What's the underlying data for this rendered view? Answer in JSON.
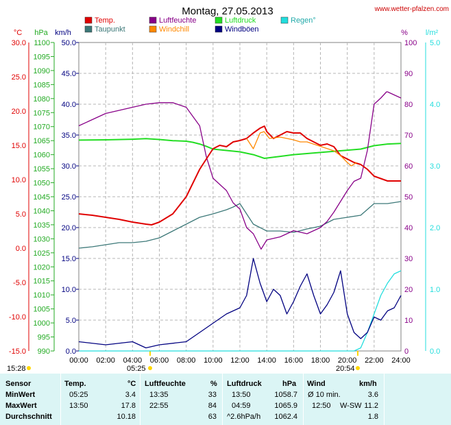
{
  "page": {
    "title": "Montag, 27.05.2013",
    "site": "www.wetter-pfalzen.com"
  },
  "colors": {
    "temp": "#e00000",
    "taupunkt": "#3c7878",
    "luftfeuchte": "#880088",
    "windchill": "#ff8800",
    "luftdruck": "#22dd22",
    "windboeen": "#000080",
    "regen": "#22dddd",
    "grid": "#b4b4b4",
    "frame": "#808080",
    "stats_bg": "#dbf5f5"
  },
  "chart_data": {
    "type": "line",
    "title": "Montag, 27.05.2013",
    "x_range_hours": [
      0,
      24
    ],
    "x_ticks": [
      "00:00",
      "02:00",
      "04:00",
      "06:00",
      "08:00",
      "10:00",
      "12:00",
      "14:00",
      "16:00",
      "18:00",
      "20:00",
      "22:00",
      "24:00"
    ],
    "grid": true,
    "legend_placement": "top",
    "legend": [
      {
        "label": "Temp.",
        "color": "#e00000"
      },
      {
        "label": "Taupunkt",
        "color": "#3c7878"
      },
      {
        "label": "Luftfeuchte",
        "color": "#880088"
      },
      {
        "label": "Windchill",
        "color": "#ff8800"
      },
      {
        "label": "Luftdruck",
        "color": "#22dd22"
      },
      {
        "label": "Windböen",
        "color": "#000080"
      },
      {
        "label": "Regen°",
        "color": "#22dddd"
      }
    ],
    "axes": {
      "temp_c": {
        "label": "°C",
        "range": [
          -15,
          30
        ],
        "ticks": [
          "30.0",
          "25.0",
          "20.0",
          "15.0",
          "10.0",
          "5.0",
          "0.0",
          "-5.0",
          "-10.0",
          "-15.0"
        ],
        "color": "#e00000"
      },
      "hpa": {
        "label": "hPa",
        "range": [
          990,
          1100
        ],
        "ticks": [
          "1100",
          "1095",
          "1090",
          "1085",
          "1080",
          "1075",
          "1070",
          "1065",
          "1060",
          "1055",
          "1050",
          "1045",
          "1040",
          "1035",
          "1030",
          "1025",
          "1020",
          "1015",
          "1010",
          "1005",
          "1000",
          "995",
          "990"
        ],
        "color": "#22aa22"
      },
      "kmh": {
        "label": "km/h",
        "range": [
          0,
          50
        ],
        "ticks": [
          "50.0",
          "45.0",
          "40.0",
          "35.0",
          "30.0",
          "25.0",
          "20.0",
          "15.0",
          "10.0",
          "5.0",
          "0.0"
        ],
        "color": "#000080"
      },
      "percent": {
        "label": "%",
        "range": [
          0,
          100
        ],
        "ticks": [
          "100",
          "90",
          "80",
          "70",
          "60",
          "50",
          "40",
          "30",
          "20",
          "10",
          "0"
        ],
        "color": "#880088"
      },
      "rain": {
        "label": "l/m²",
        "range": [
          0,
          5
        ],
        "ticks": [
          "5.0",
          "4.0",
          "3.0",
          "2.0",
          "1.0",
          "0.0"
        ],
        "color": "#22dddd"
      }
    },
    "sun_times": {
      "sunrise_marker": "05:25",
      "sunset_marker": "20:54",
      "left_marker": "15:28"
    },
    "series": [
      {
        "name": "Temp.",
        "axis": "temp_c",
        "x": [
          0,
          1,
          2,
          3,
          4,
          5,
          5.42,
          6,
          7,
          8,
          9,
          9.5,
          10,
          10.5,
          11,
          11.5,
          12,
          12.5,
          13,
          13.5,
          13.83,
          14,
          14.5,
          15,
          15.5,
          16,
          16.5,
          17,
          17.5,
          18,
          18.5,
          19,
          19.5,
          20,
          20.5,
          21,
          21.5,
          22,
          23,
          24
        ],
        "values": [
          5.0,
          4.8,
          4.5,
          4.2,
          3.8,
          3.5,
          3.4,
          3.8,
          5.0,
          7.5,
          11.5,
          13.0,
          14.5,
          15.0,
          14.8,
          15.5,
          15.7,
          16.0,
          16.8,
          17.5,
          17.8,
          17.0,
          16.0,
          16.5,
          17.0,
          16.8,
          16.8,
          16.0,
          15.5,
          15.0,
          15.2,
          14.8,
          13.5,
          13.0,
          12.5,
          12.2,
          11.5,
          10.5,
          9.8,
          9.8
        ]
      },
      {
        "name": "Taupunkt",
        "axis": "temp_c",
        "x": [
          0,
          1,
          2,
          3,
          4,
          5,
          6,
          7,
          8,
          9,
          10,
          10.5,
          11,
          11.5,
          12,
          12.5,
          13,
          13.5,
          14,
          15,
          16,
          17,
          18,
          18.5,
          19,
          20,
          21,
          22,
          23,
          24
        ],
        "values": [
          0.0,
          0.2,
          0.5,
          0.8,
          0.8,
          1.0,
          1.5,
          2.5,
          3.5,
          4.5,
          5.0,
          5.3,
          5.6,
          6.0,
          6.5,
          5.0,
          3.5,
          3.0,
          2.5,
          2.5,
          2.3,
          2.8,
          3.2,
          3.7,
          4.2,
          4.5,
          4.8,
          6.5,
          6.5,
          6.8
        ]
      },
      {
        "name": "Luftfeuchte",
        "axis": "percent",
        "x": [
          0,
          1,
          2,
          3,
          4,
          5,
          6,
          7,
          8,
          9,
          9.5,
          10,
          10.5,
          11,
          11.5,
          12,
          12.5,
          13,
          13.58,
          14,
          15,
          16,
          17,
          18,
          18.5,
          19,
          20,
          20.5,
          21,
          21.5,
          22,
          22.5,
          22.92,
          23,
          24
        ],
        "values": [
          73,
          75,
          77,
          78,
          79,
          80,
          80.5,
          80.5,
          79,
          73,
          63,
          56,
          54,
          52,
          48,
          46,
          40,
          38,
          33,
          36,
          37,
          39,
          38,
          40,
          42,
          45,
          52,
          55,
          56,
          65,
          80,
          82,
          84,
          84,
          82
        ]
      },
      {
        "name": "Windchill",
        "axis": "temp_c",
        "x": [
          12.5,
          13,
          13.5,
          13.8,
          14.2,
          15,
          16,
          16.5,
          17,
          19,
          19.5,
          20,
          20.3,
          20.7
        ],
        "values": [
          16.0,
          14.5,
          16.8,
          17.0,
          16.0,
          16.2,
          15.8,
          15.5,
          15.5,
          14.2,
          13.5,
          12.5,
          12.0,
          12.5
        ]
      },
      {
        "name": "Luftdruck",
        "axis": "hpa",
        "x": [
          0,
          2,
          4,
          5,
          6,
          7,
          8,
          8.5,
          9,
          9.5,
          10,
          11,
          12,
          13,
          13.83,
          15,
          16,
          17,
          18,
          19,
          20,
          21,
          22,
          23,
          24
        ],
        "values": [
          1065.2,
          1065.3,
          1065.5,
          1065.7,
          1065.4,
          1065.0,
          1064.8,
          1064.4,
          1063.8,
          1063.0,
          1062.0,
          1061.5,
          1061.0,
          1060.0,
          1058.7,
          1059.4,
          1060.0,
          1060.4,
          1060.8,
          1061.2,
          1061.6,
          1062.0,
          1063.2,
          1063.8,
          1064.0
        ]
      },
      {
        "name": "Windböen",
        "axis": "kmh",
        "x": [
          0,
          2,
          4,
          5,
          6,
          8,
          9,
          10,
          11,
          12,
          12.5,
          13,
          13.5,
          14,
          14.5,
          15,
          15.5,
          16,
          16.5,
          17,
          17.5,
          18,
          18.5,
          19,
          19.5,
          20,
          20.5,
          21,
          21.5,
          22,
          22.5,
          23,
          23.5,
          24
        ],
        "values": [
          1.5,
          1.0,
          1.5,
          0.5,
          1.0,
          1.5,
          3.0,
          4.5,
          6.0,
          7.0,
          9.0,
          15.0,
          11.0,
          8.0,
          10.0,
          9.0,
          6.0,
          8.0,
          10.5,
          12.5,
          9.0,
          6.0,
          7.5,
          9.5,
          13.0,
          6.0,
          3.0,
          2.0,
          3.0,
          5.5,
          5.0,
          6.5,
          7.0,
          9.0
        ]
      },
      {
        "name": "Regen°",
        "axis": "rain",
        "x": [
          0,
          20.5,
          21,
          21.5,
          22,
          22.5,
          23,
          23.5,
          24
        ],
        "values": [
          0,
          0,
          0.05,
          0.3,
          0.6,
          0.9,
          1.1,
          1.25,
          1.3
        ]
      }
    ]
  },
  "stats": {
    "headers": {
      "sensor": "Sensor",
      "temp": "Temp.",
      "temp_unit": "°C",
      "feuchte": "Luftfeuchte",
      "feuchte_unit": "%",
      "druck": "Luftdruck",
      "druck_unit": "hPa",
      "wind": "Wind",
      "wind_unit": "km/h"
    },
    "rows": [
      {
        "label": "MinWert",
        "temp_time": "05:25",
        "temp_val": "3.4",
        "feuchte_time": "13:35",
        "feuchte_val": "33",
        "druck_time": "13:50",
        "druck_val": "1058.7",
        "wind_text": "Ø 10 min.",
        "wind_val": "3.6"
      },
      {
        "label": "MaxWert",
        "temp_time": "13:50",
        "temp_val": "17.8",
        "feuchte_time": "22:55",
        "feuchte_val": "84",
        "druck_time": "04:59",
        "druck_val": "1065.9",
        "wind_time": "12:50",
        "wind_text": "W-SW",
        "wind_val": "11.2"
      },
      {
        "label": "Durchschnitt",
        "temp_time": "",
        "temp_val": "10.18",
        "feuchte_time": "",
        "feuchte_val": "63",
        "druck_time": "^2.6hPa/h",
        "druck_val": "1062.4",
        "wind_text": "",
        "wind_val": "1.8"
      }
    ]
  }
}
